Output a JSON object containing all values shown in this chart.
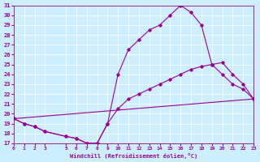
{
  "xlabel": "Windchill (Refroidissement éolien,°C)",
  "bg_color": "#cceeff",
  "line_color": "#990099",
  "xlim": [
    0,
    23
  ],
  "ylim": [
    17,
    31
  ],
  "yticks": [
    17,
    18,
    19,
    20,
    21,
    22,
    23,
    24,
    25,
    26,
    27,
    28,
    29,
    30,
    31
  ],
  "xticks": [
    0,
    1,
    2,
    3,
    5,
    6,
    7,
    8,
    9,
    10,
    11,
    12,
    13,
    14,
    15,
    16,
    17,
    18,
    19,
    20,
    21,
    22,
    23
  ],
  "line1_x": [
    0,
    1,
    2,
    3,
    5,
    6,
    7,
    8,
    9,
    10,
    11,
    12,
    13,
    14,
    15,
    16,
    17,
    18,
    19,
    20,
    21,
    22,
    23
  ],
  "line1_y": [
    19.5,
    19.0,
    18.7,
    18.2,
    17.7,
    17.5,
    17.0,
    17.0,
    19.0,
    24.0,
    26.5,
    27.5,
    28.5,
    29.0,
    30.0,
    31.0,
    30.3,
    29.0,
    25.0,
    24.0,
    23.0,
    22.5,
    21.5
  ],
  "line2_x": [
    0,
    1,
    2,
    3,
    5,
    6,
    7,
    8,
    9,
    10,
    11,
    12,
    13,
    14,
    15,
    16,
    17,
    18,
    19,
    20,
    21,
    22,
    23
  ],
  "line2_y": [
    19.5,
    19.0,
    18.7,
    18.2,
    17.7,
    17.5,
    17.0,
    17.0,
    19.0,
    20.5,
    21.5,
    22.0,
    22.5,
    23.0,
    23.5,
    24.0,
    24.5,
    24.8,
    25.0,
    25.2,
    24.0,
    23.0,
    21.5
  ],
  "line3_x": [
    0,
    23
  ],
  "line3_y": [
    19.5,
    21.5
  ]
}
